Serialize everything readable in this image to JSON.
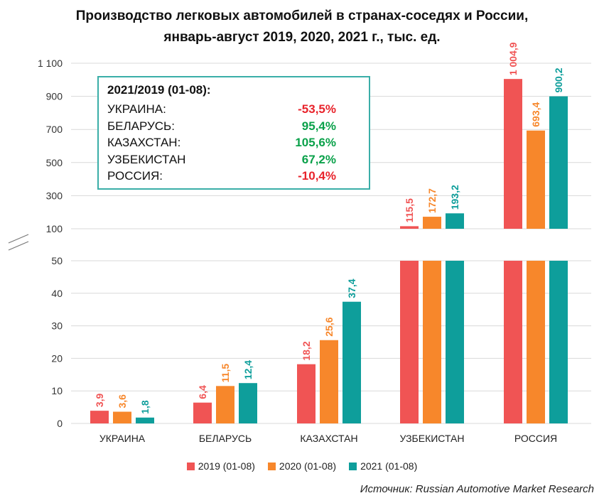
{
  "title": {
    "line1": "Производство легковых автомобилей в странах-соседях и России,",
    "line2": "январь-август 2019, 2020, 2021 г., тыс. ед."
  },
  "source": "Источник: Russian Automotive Market Research",
  "summary": {
    "title": "2021/2019 (01-08):",
    "rows": [
      {
        "country": "УКРАИНА:",
        "value": "-53,5%",
        "color": "#e8232b"
      },
      {
        "country": "БЕЛАРУСЬ:",
        "value": "95,4%",
        "color": "#0aa14a"
      },
      {
        "country": "КАЗАХСТАН:",
        "value": "105,6%",
        "color": "#0aa14a"
      },
      {
        "country": "УЗБЕКИСТАН",
        "value": "67,2%",
        "color": "#0aa14a"
      },
      {
        "country": "РОССИЯ:",
        "value": "-10,4%",
        "color": "#e8232b"
      }
    ]
  },
  "chart_data": {
    "type": "bar",
    "categories": [
      "УКРАИНА",
      "БЕЛАРУСЬ",
      "КАЗАХСТАН",
      "УЗБЕКИСТАН",
      "РОССИЯ"
    ],
    "series": [
      {
        "name": "2019 (01-08)",
        "color": "#f05454",
        "values": [
          3.9,
          6.4,
          18.2,
          115.5,
          1004.9
        ],
        "labels": [
          "3,9",
          "6,4",
          "18,2",
          "115,5",
          "1 004,9"
        ]
      },
      {
        "name": "2020 (01-08)",
        "color": "#f7872b",
        "values": [
          3.6,
          11.5,
          25.6,
          172.7,
          693.4
        ],
        "labels": [
          "3,6",
          "11,5",
          "25,6",
          "172,7",
          "693,4"
        ]
      },
      {
        "name": "2021 (01-08)",
        "color": "#0e9e9b",
        "values": [
          1.8,
          12.4,
          37.4,
          193.2,
          900.2
        ],
        "labels": [
          "1,8",
          "12,4",
          "37,4",
          "193,2",
          "900,2"
        ]
      }
    ],
    "axis": {
      "broken": true,
      "lower": {
        "range": [
          0,
          50
        ],
        "ticks": [
          "0",
          "10",
          "20",
          "30",
          "40",
          "50"
        ]
      },
      "upper": {
        "range": [
          100,
          1100
        ],
        "ticks": [
          "100",
          "300",
          "500",
          "700",
          "900",
          "1 100"
        ]
      }
    },
    "grid": true,
    "legend": "bottom"
  }
}
